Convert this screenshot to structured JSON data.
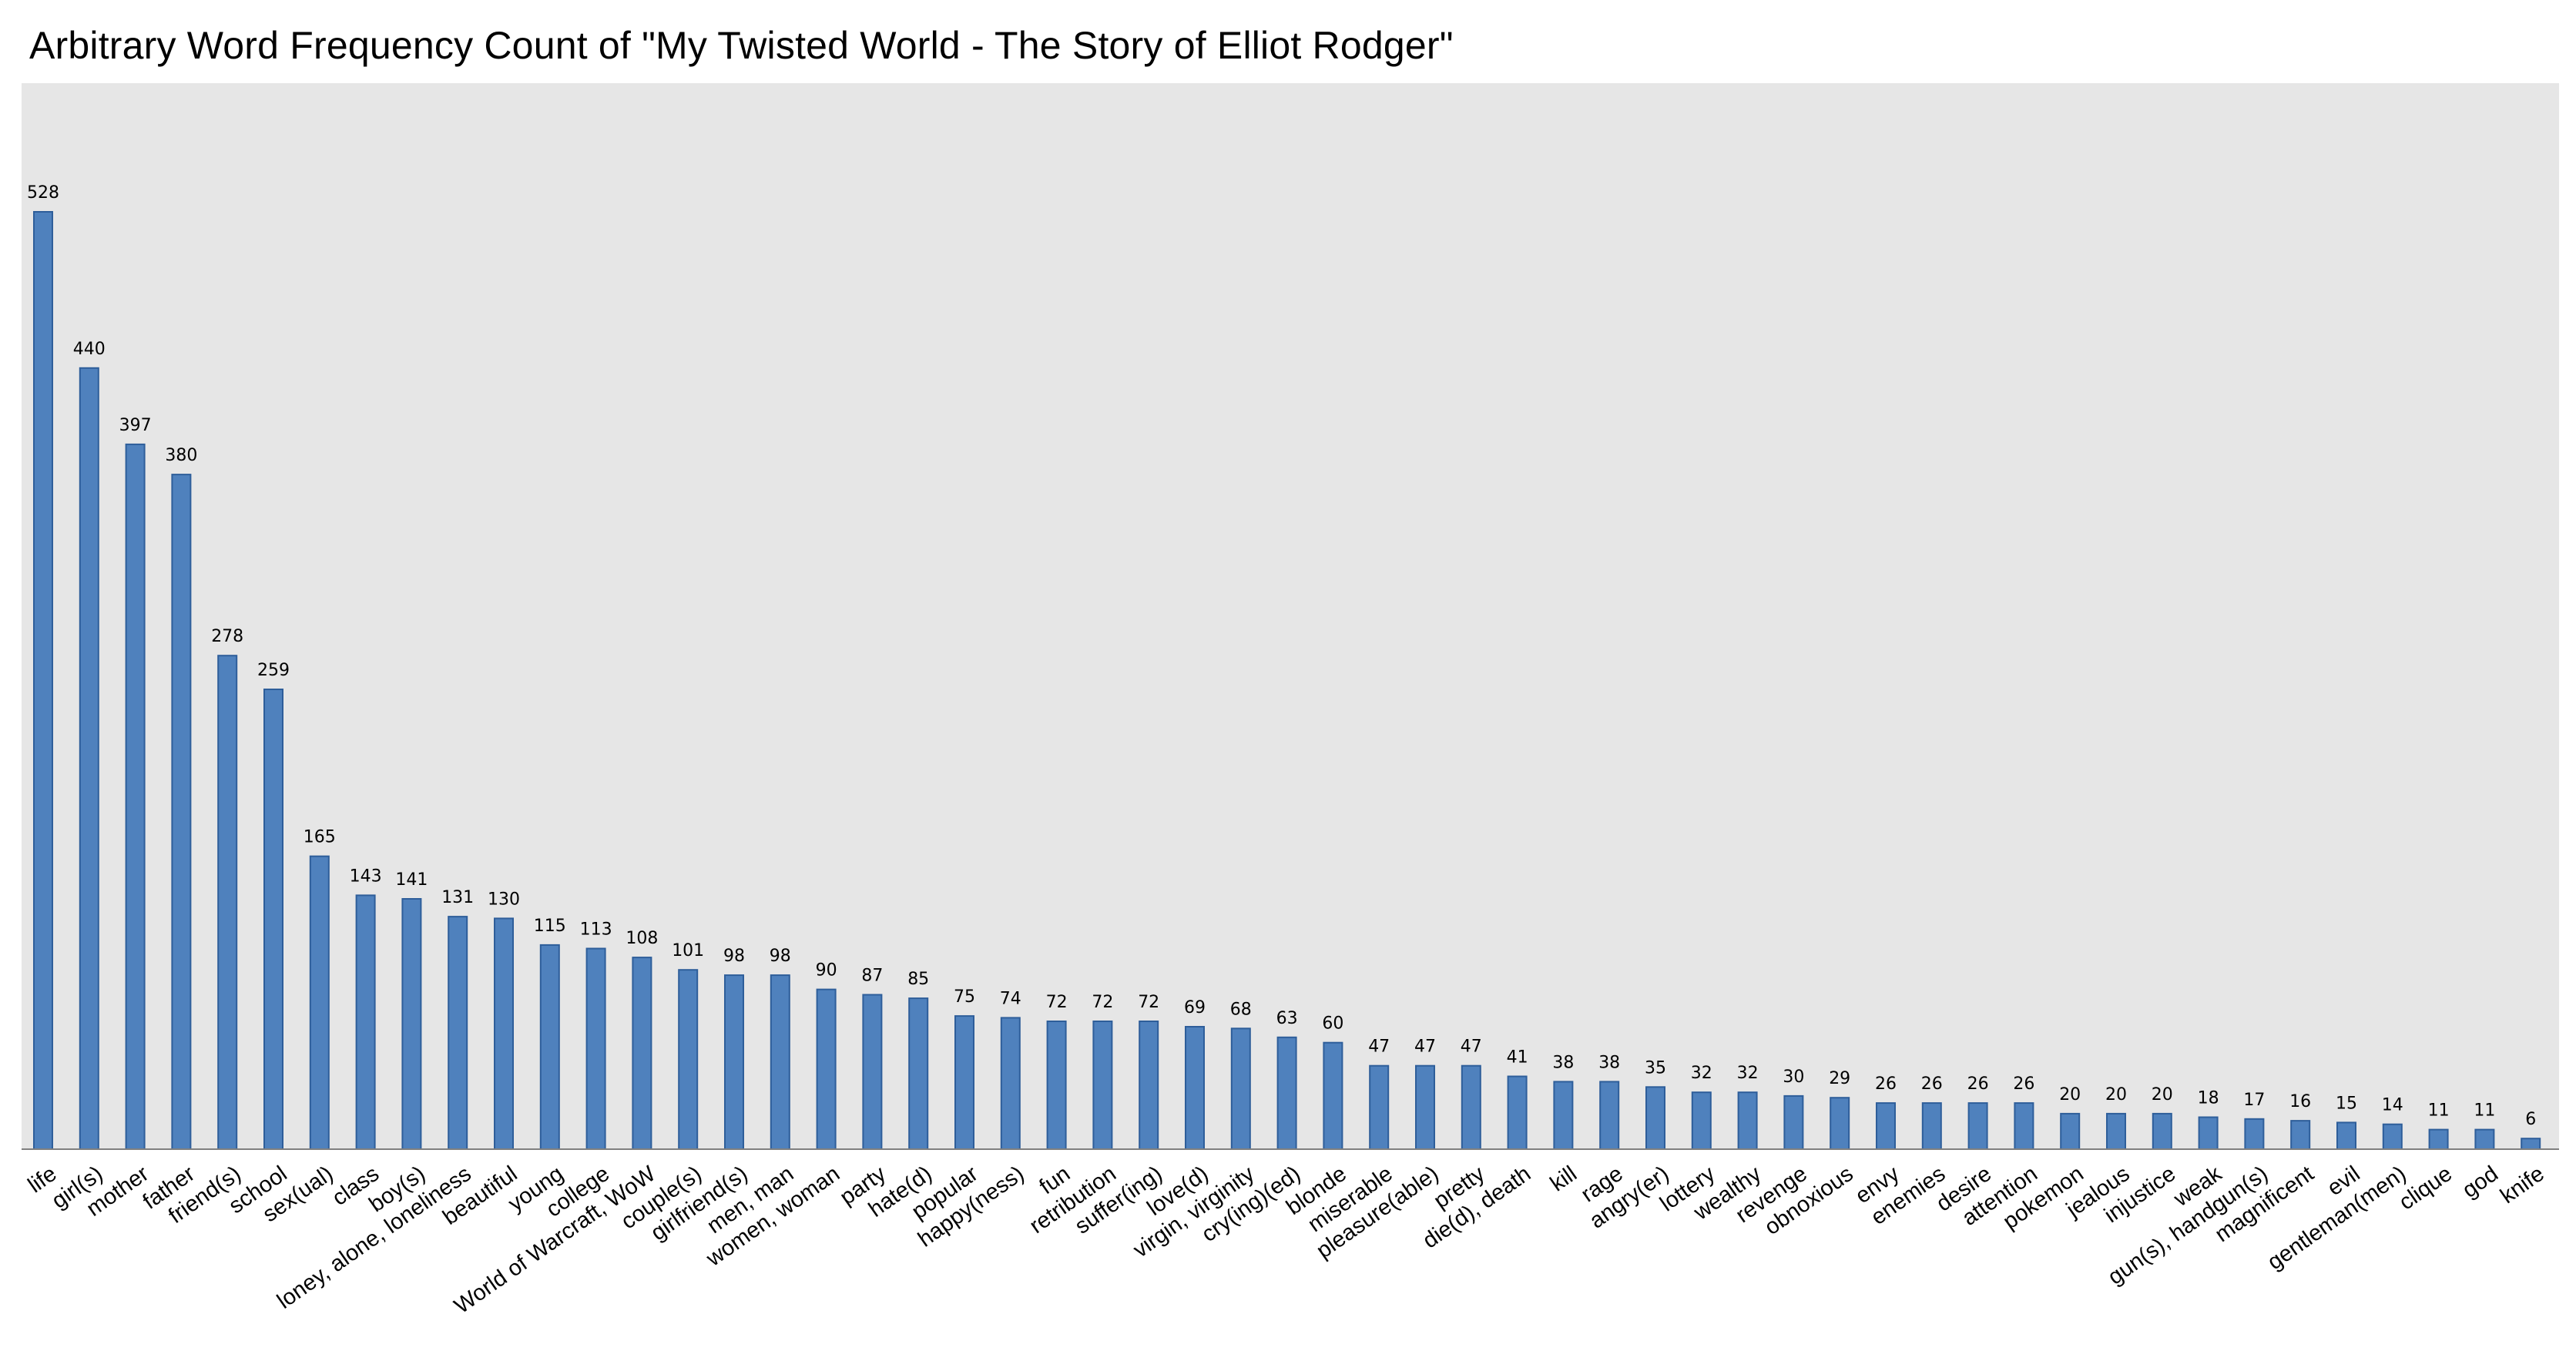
{
  "chart_data": {
    "type": "bar",
    "title": "Arbitrary Word Frequency Count of \"My Twisted World - The Story of Elliot Rodger\"",
    "xlabel": "",
    "ylabel": "",
    "ylim": [
      0,
      600
    ],
    "grid": false,
    "legend": "none",
    "colors": {
      "bar": "#4f81bd",
      "bar_edge": "#2e5e9a",
      "plot_bg": "#e6e6e6",
      "axis": "#808080"
    },
    "categories": [
      "life",
      "girl(s)",
      "mother",
      "father",
      "friend(s)",
      "school",
      "sex(ual)",
      "class",
      "boy(s)",
      "loney, alone, loneliness",
      "beautiful",
      "young",
      "college",
      "World of Warcraft, WoW",
      "couple(s)",
      "girlfriend(s)",
      "men, man",
      "women, woman",
      "party",
      "hate(d)",
      "popular",
      "happy(ness)",
      "fun",
      "retribution",
      "suffer(ing)",
      "love(d)",
      "virgin, virginity",
      "cry(ing)(ed)",
      "blonde",
      "miserable",
      "pleasure(able)",
      "pretty",
      "die(d), death",
      "kill",
      "rage",
      "angry(er)",
      "lottery",
      "wealthy",
      "revenge",
      "obnoxious",
      "envy",
      "enemies",
      "desire",
      "attention",
      "pokemon",
      "jealous",
      "injustice",
      "weak",
      "gun(s), handgun(s)",
      "magnificent",
      "evil",
      "gentleman(men)",
      "clique",
      "god",
      "knife"
    ],
    "values": [
      528,
      440,
      397,
      380,
      278,
      259,
      165,
      143,
      141,
      131,
      130,
      115,
      113,
      108,
      101,
      98,
      98,
      90,
      87,
      85,
      75,
      74,
      72,
      72,
      72,
      69,
      68,
      63,
      60,
      47,
      47,
      47,
      41,
      38,
      38,
      35,
      32,
      32,
      30,
      29,
      26,
      26,
      26,
      26,
      20,
      20,
      20,
      18,
      17,
      16,
      15,
      14,
      11,
      11,
      6
    ]
  }
}
